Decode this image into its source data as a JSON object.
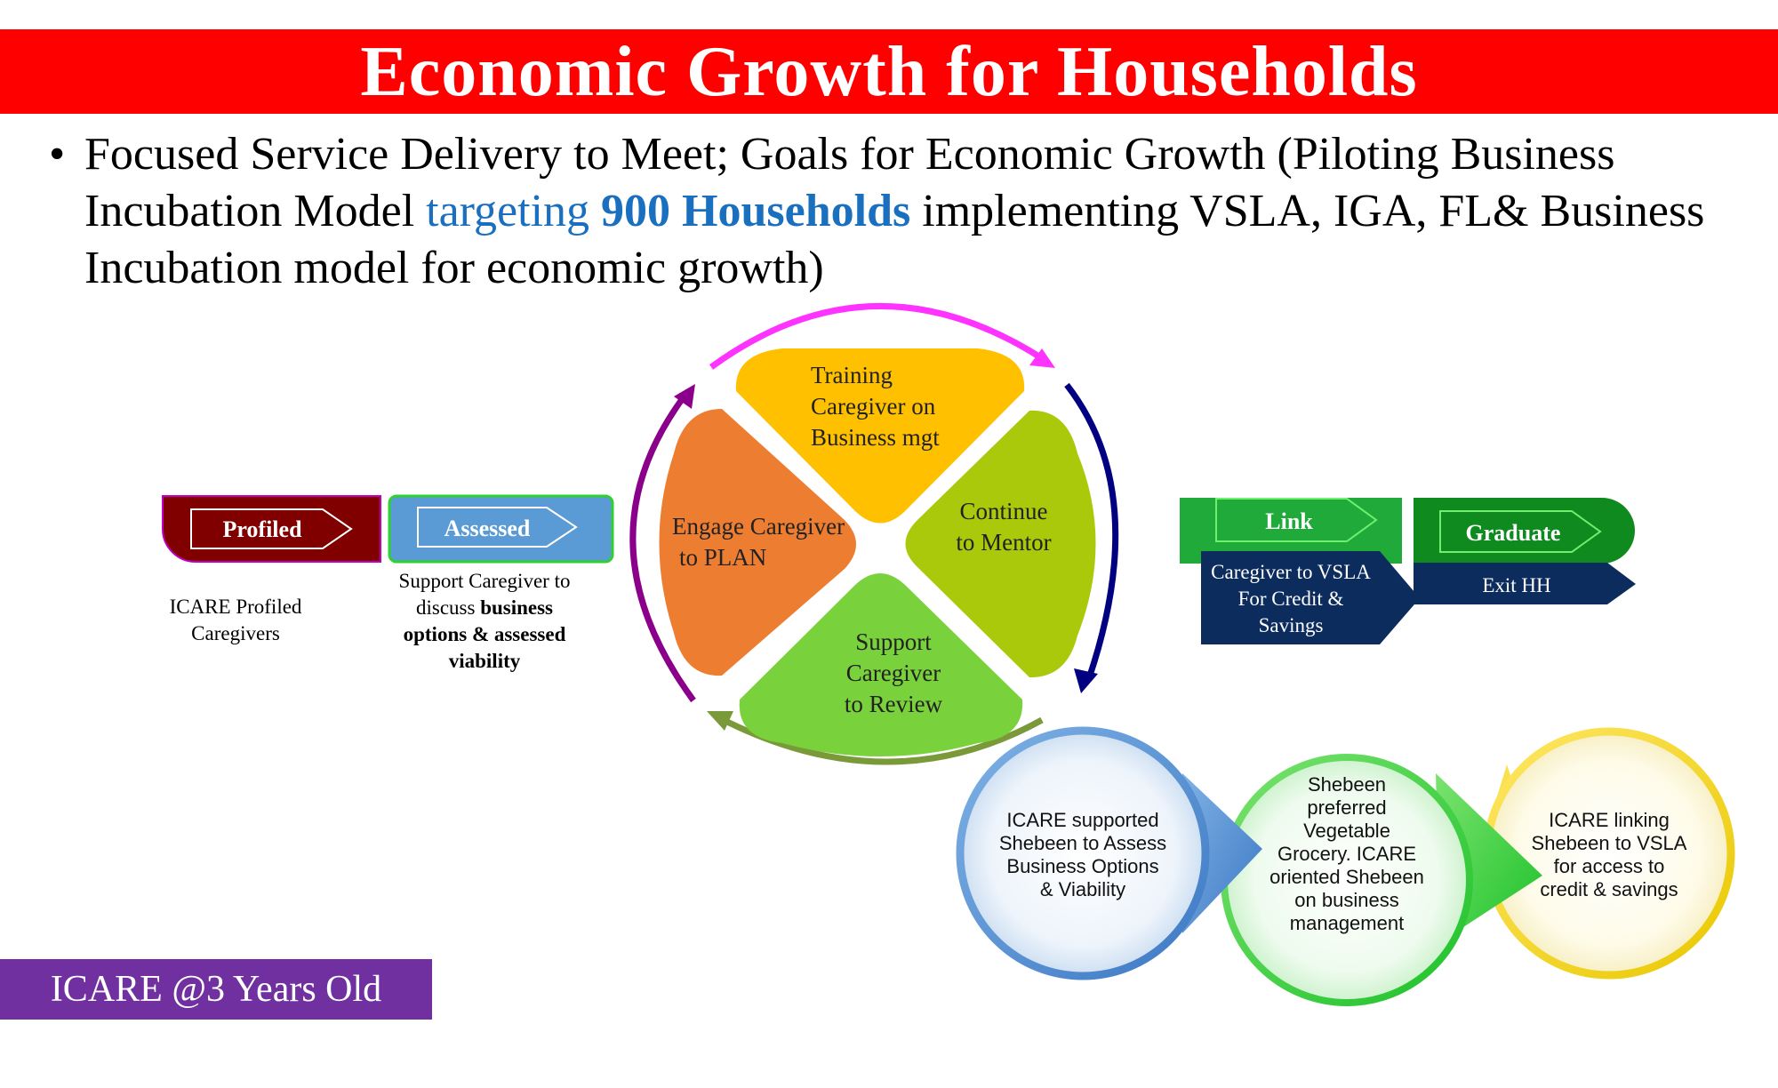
{
  "title": "Economic Growth for Households",
  "bullet": {
    "part1": "Focused Service Delivery to Meet; Goals for Economic Growth (Piloting Business Incubation Model ",
    "part2": "targeting ",
    "part3": "900 Households",
    "part4": " implementing VSLA, IGA, FL& Business Incubation model for economic growth)"
  },
  "steps": {
    "profiled": {
      "label": "Profiled",
      "caption_1": "ICARE Profiled",
      "caption_2": "Caregivers"
    },
    "assessed": {
      "label": "Assessed",
      "caption_1": "Support Caregiver to",
      "caption_2a": "discuss ",
      "caption_2b": "business",
      "caption_3": "options & assessed",
      "caption_4": "viability"
    },
    "link": {
      "label": "Link",
      "sub_1": "Caregiver to VSLA",
      "sub_2": "For Credit &",
      "sub_3": "Savings"
    },
    "graduate": {
      "label": "Graduate",
      "sub": "Exit HH"
    }
  },
  "cycle": {
    "training": [
      "Training",
      "Caregiver on",
      "Business mgt"
    ],
    "mentor": [
      "Continue",
      "to Mentor"
    ],
    "review": [
      "Support",
      "Caregiver",
      "to Review"
    ],
    "plan": [
      "Engage Caregiver",
      "to PLAN"
    ]
  },
  "bubbles": [
    [
      "ICARE supported",
      "Shebeen to Assess",
      "Business Options",
      "& Viability"
    ],
    [
      "Shebeen",
      "preferred",
      "Vegetable",
      "Grocery. ICARE",
      "oriented Shebeen",
      "on business",
      "management"
    ],
    [
      "ICARE linking",
      "Shebeen to VSLA",
      "for access to",
      "credit & savings"
    ]
  ],
  "badge": "ICARE @3 Years Old",
  "colors": {
    "title_bg": "#ff0000",
    "profiled": "#800000",
    "assessed": "#5b9bd5",
    "link": "#1faa3a",
    "graduate": "#0f8a1e",
    "navy": "#0c2c5e",
    "training": "#ffc000",
    "mentor": "#a9c90a",
    "review": "#79d23b",
    "plan": "#ed7d31",
    "badge": "#7030a0"
  }
}
